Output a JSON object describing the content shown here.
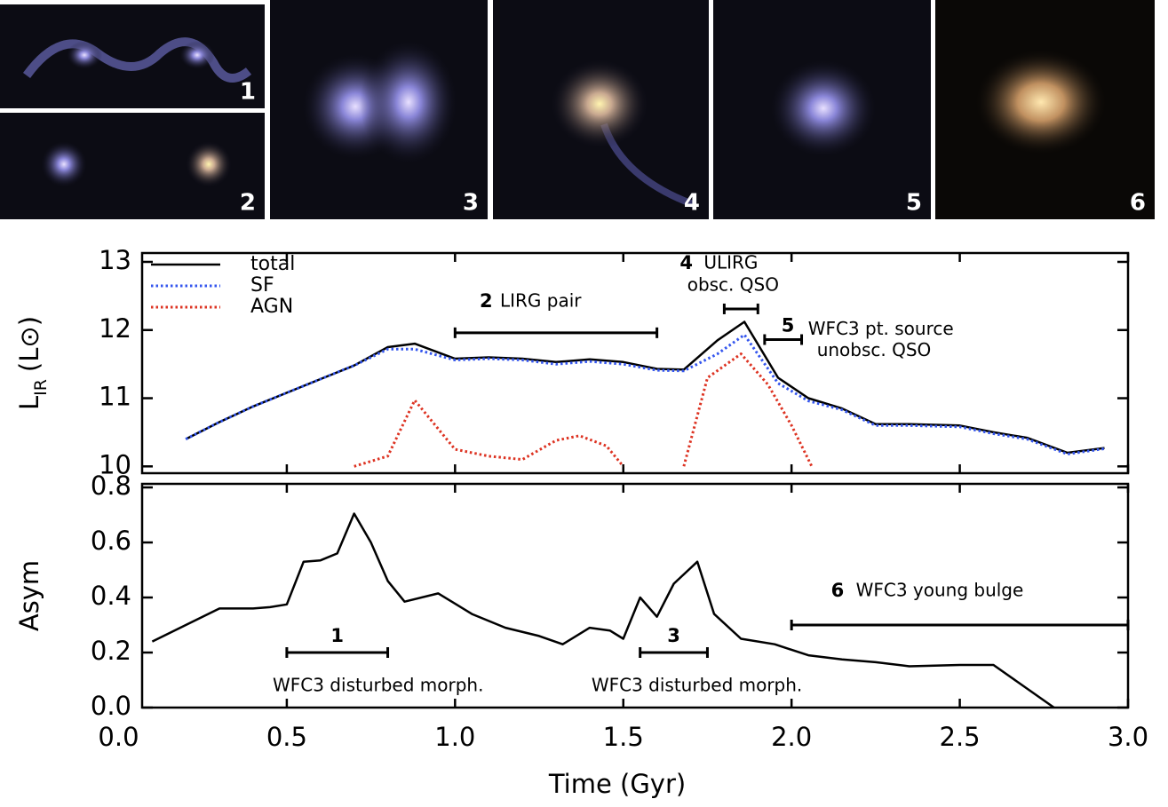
{
  "panels": [
    {
      "label": "1"
    },
    {
      "label": "2"
    },
    {
      "label": "3"
    },
    {
      "label": "4"
    },
    {
      "label": "5"
    },
    {
      "label": "6"
    }
  ],
  "chart_data": [
    {
      "type": "line",
      "ylabel": [
        "L",
        "IR",
        "(L⊙)"
      ],
      "xlim": [
        0.07,
        3.0
      ],
      "xticks": [
        0,
        0.5,
        1,
        1.5,
        2,
        2.5,
        3
      ],
      "ylim": [
        9.9,
        13.13
      ],
      "yticks": [
        10,
        11,
        12,
        13
      ],
      "legend": "upper left",
      "series": [
        {
          "name": "total",
          "color": "#000000",
          "style": "solid",
          "x": [
            0.2,
            0.3,
            0.4,
            0.5,
            0.6,
            0.7,
            0.8,
            0.88,
            1.0,
            1.1,
            1.2,
            1.3,
            1.4,
            1.5,
            1.6,
            1.68,
            1.78,
            1.86,
            1.96,
            2.05,
            2.15,
            2.25,
            2.35,
            2.5,
            2.6,
            2.7,
            2.82,
            2.93
          ],
          "values": [
            10.4,
            10.65,
            10.88,
            11.08,
            11.28,
            11.48,
            11.75,
            11.8,
            11.58,
            11.6,
            11.58,
            11.53,
            11.57,
            11.53,
            11.43,
            11.42,
            11.85,
            12.12,
            11.3,
            11.0,
            10.85,
            10.62,
            10.62,
            10.6,
            10.5,
            10.42,
            10.2,
            10.27
          ]
        },
        {
          "name": "SF",
          "color": "#3355ee",
          "style": "dotted",
          "x": [
            0.2,
            0.3,
            0.4,
            0.5,
            0.6,
            0.7,
            0.8,
            0.88,
            1.0,
            1.1,
            1.2,
            1.3,
            1.4,
            1.5,
            1.6,
            1.68,
            1.78,
            1.86,
            1.96,
            2.05,
            2.15,
            2.25,
            2.35,
            2.5,
            2.6,
            2.7,
            2.82,
            2.93
          ],
          "values": [
            10.4,
            10.65,
            10.88,
            11.08,
            11.28,
            11.48,
            11.72,
            11.72,
            11.56,
            11.58,
            11.56,
            11.5,
            11.54,
            11.5,
            11.41,
            11.4,
            11.65,
            11.93,
            11.22,
            10.96,
            10.83,
            10.6,
            10.6,
            10.58,
            10.48,
            10.4,
            10.18,
            10.26
          ]
        },
        {
          "name": "AGN",
          "color": "#dd3322",
          "style": "dotted",
          "x": [
            0.7,
            0.8,
            0.88,
            1.0,
            1.1,
            1.2,
            1.3,
            1.37,
            1.45,
            1.5,
            1.6,
            1.68,
            1.75,
            1.85,
            1.93,
            2.0,
            2.06
          ],
          "values": [
            10.0,
            10.15,
            10.97,
            10.25,
            10.15,
            10.1,
            10.38,
            10.45,
            10.3,
            10.0,
            null,
            10.0,
            11.3,
            11.65,
            11.2,
            10.6,
            10.0
          ]
        }
      ],
      "annotations": [
        {
          "number": "2",
          "lines": [
            "LIRG pair"
          ],
          "x": [
            1.0,
            1.6
          ],
          "y": 11.96
        },
        {
          "number": "4",
          "lines": [
            "ULIRG",
            "obsc. QSO"
          ],
          "x": [
            1.8,
            1.9
          ],
          "y": 12.31
        },
        {
          "number": "5",
          "lines": [
            "WFC3 pt. source",
            "unobsc. QSO"
          ],
          "x": [
            1.92,
            2.03
          ],
          "y": 11.86
        }
      ]
    },
    {
      "type": "line",
      "ylabel": [
        "Asym"
      ],
      "xlabel": "Time (Gyr)",
      "xlim": [
        0.07,
        3.0
      ],
      "xticks": [
        {
          "value": 0,
          "label": "0.0"
        },
        0.5,
        {
          "value": 1,
          "label": "1.0"
        },
        1.5,
        {
          "value": 2,
          "label": "2.0"
        },
        2.5,
        {
          "value": 3,
          "label": "3.0"
        }
      ],
      "ylim": [
        0,
        0.813
      ],
      "yticks": [
        {
          "value": 0,
          "label": "0.0"
        },
        0.2,
        0.4,
        0.6,
        0.8
      ],
      "series": [
        {
          "color": "#000000",
          "style": "solid",
          "x": [
            0.1,
            0.2,
            0.3,
            0.4,
            0.45,
            0.5,
            0.55,
            0.6,
            0.65,
            0.7,
            0.75,
            0.8,
            0.85,
            0.95,
            1.05,
            1.15,
            1.25,
            1.32,
            1.4,
            1.46,
            1.5,
            1.55,
            1.6,
            1.65,
            1.72,
            1.77,
            1.85,
            1.95,
            2.05,
            2.15,
            2.25,
            2.35,
            2.5,
            2.6,
            2.78
          ],
          "values": [
            0.24,
            0.3,
            0.36,
            0.36,
            0.365,
            0.375,
            0.53,
            0.535,
            0.56,
            0.705,
            0.6,
            0.46,
            0.385,
            0.415,
            0.34,
            0.29,
            0.26,
            0.23,
            0.29,
            0.28,
            0.25,
            0.4,
            0.33,
            0.45,
            0.53,
            0.34,
            0.25,
            0.23,
            0.19,
            0.175,
            0.165,
            0.15,
            0.155,
            0.155,
            0.0
          ]
        }
      ],
      "annotations": [
        {
          "number": "1",
          "lines": [
            "WFC3 disturbed morph."
          ],
          "x": [
            0.5,
            0.8
          ],
          "y": 0.2
        },
        {
          "number": "3",
          "lines": [
            "WFC3 disturbed morph."
          ],
          "x": [
            1.55,
            1.75
          ],
          "y": 0.2
        },
        {
          "number": "6",
          "lines": [
            "WFC3 young bulge"
          ],
          "x": [
            2.0,
            3.0
          ],
          "y": 0.3
        }
      ]
    }
  ]
}
